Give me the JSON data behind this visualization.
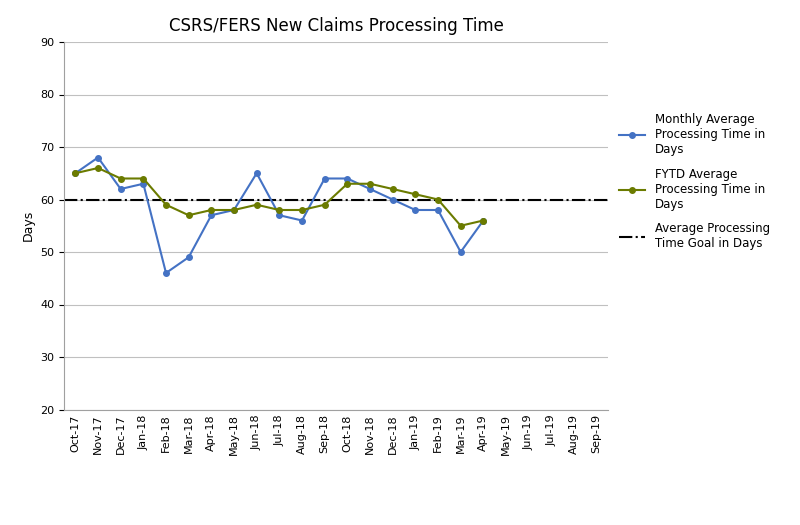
{
  "title": "CSRS/FERS New Claims Processing Time",
  "ylabel": "Days",
  "ylim": [
    20,
    90
  ],
  "yticks": [
    20,
    30,
    40,
    50,
    60,
    70,
    80,
    90
  ],
  "goal_line": 60,
  "x_labels": [
    "Oct-17",
    "Nov-17",
    "Dec-17",
    "Jan-18",
    "Feb-18",
    "Mar-18",
    "Apr-18",
    "May-18",
    "Jun-18",
    "Jul-18",
    "Aug-18",
    "Sep-18",
    "Oct-18",
    "Nov-18",
    "Dec-18",
    "Jan-19",
    "Feb-19",
    "Mar-19",
    "Apr-19",
    "May-19",
    "Jun-19",
    "Jul-19",
    "Aug-19",
    "Sep-19"
  ],
  "monthly_avg": {
    "indices": [
      0,
      1,
      2,
      3,
      4,
      5,
      6,
      7,
      8,
      9,
      10,
      11,
      12,
      13,
      14,
      15,
      16,
      17,
      18
    ],
    "values": [
      65,
      68,
      62,
      63,
      46,
      49,
      57,
      58,
      65,
      57,
      56,
      64,
      64,
      62,
      60,
      58,
      58,
      50,
      56
    ]
  },
  "fytd_avg": {
    "indices": [
      0,
      1,
      2,
      3,
      4,
      5,
      6,
      7,
      8,
      9,
      10,
      11,
      12,
      13,
      14,
      15,
      16,
      17,
      18
    ],
    "values": [
      65,
      66,
      64,
      64,
      59,
      57,
      58,
      58,
      59,
      58,
      58,
      59,
      63,
      63,
      62,
      61,
      60,
      55,
      56
    ]
  },
  "monthly_color": "#4472C4",
  "fytd_color": "#6B7B00",
  "goal_color": "#000000",
  "title_fontsize": 12,
  "axis_label_fontsize": 9,
  "tick_fontsize": 8,
  "legend_fontsize": 8.5,
  "bg_color": "#FFFFFF",
  "grid_color": "#C0C0C0"
}
